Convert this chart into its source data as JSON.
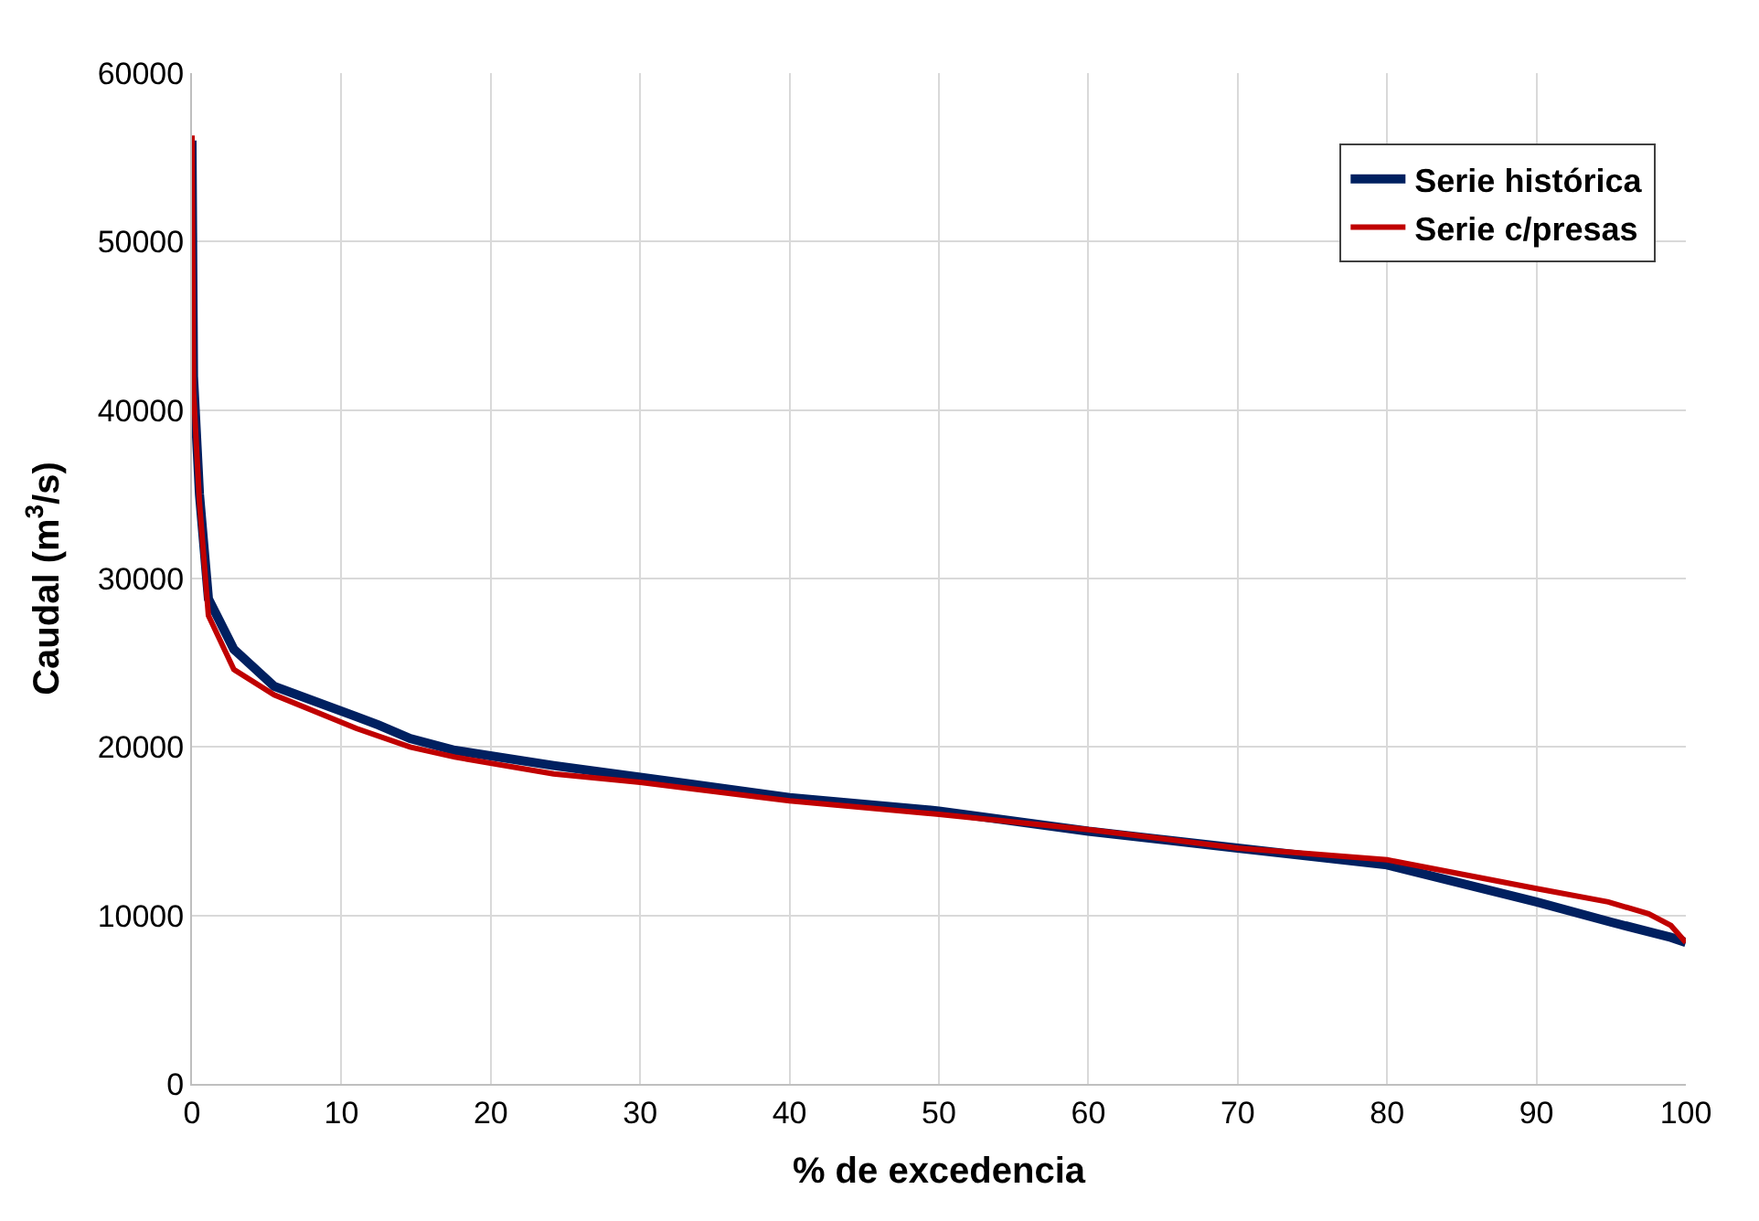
{
  "chart_data": {
    "type": "line",
    "xlabel": "% de excedencia",
    "ylabel": "Caudal (m$^{3}$/s)",
    "xlim": [
      0,
      100
    ],
    "xticks": [
      0,
      10,
      20,
      30,
      40,
      50,
      60,
      70,
      80,
      90,
      100
    ],
    "ylim": [
      0,
      60000
    ],
    "yticks": [
      0,
      10000,
      20000,
      30000,
      40000,
      50000,
      60000
    ],
    "grid": true,
    "legend": "top right",
    "marker": "none",
    "line_style": "solid",
    "series": [
      {
        "name": "Serie histórica",
        "color": "#002060",
        "x": [
          0,
          0.1,
          0.5,
          1.1,
          2.8,
          5.5,
          11.0,
          12.5,
          14.6,
          17.6,
          24.2,
          30,
          40,
          50,
          60,
          70,
          80,
          90,
          95,
          99,
          100
        ],
        "values": [
          56000,
          42000,
          35000,
          28800,
          25800,
          23600,
          21800,
          21300,
          20500,
          19800,
          18900,
          18200,
          17000,
          16200,
          15000,
          14000,
          13000,
          10800,
          9600,
          8700,
          8400
        ]
      },
      {
        "name": "Serie c/presas",
        "color": "#c00000",
        "x": [
          0,
          0.1,
          0.5,
          1.1,
          2.8,
          5.5,
          11.0,
          14.6,
          17.6,
          24.2,
          30,
          40,
          50,
          60,
          70,
          80,
          90,
          94.8,
          97.5,
          99,
          100
        ],
        "values": [
          56300,
          41200,
          34500,
          27800,
          24600,
          23100,
          21100,
          20000,
          19400,
          18400,
          17900,
          16800,
          16000,
          15100,
          14000,
          13300,
          11600,
          10800,
          10100,
          9400,
          8400
        ]
      }
    ]
  }
}
